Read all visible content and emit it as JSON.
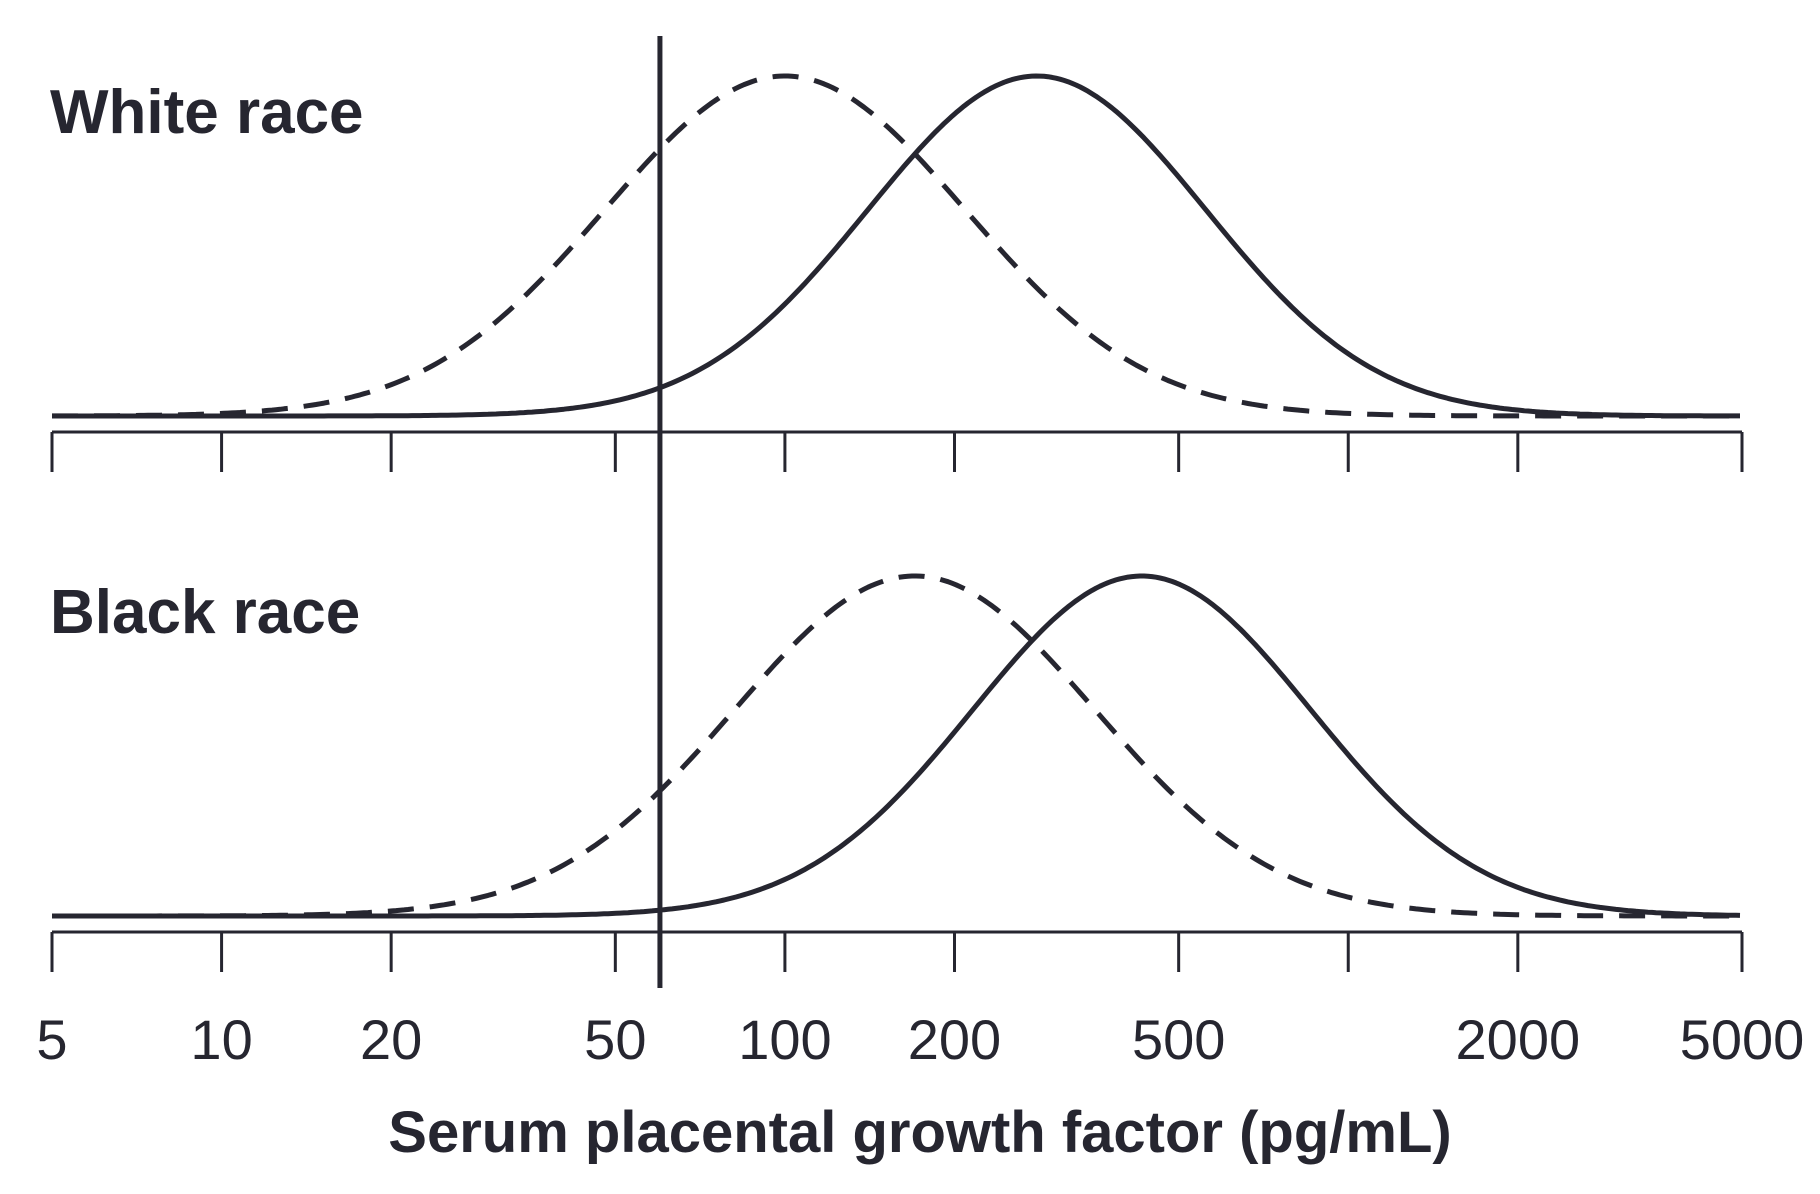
{
  "chart_data": {
    "type": "line",
    "xlabel": "Serum placental growth factor (pg/mL)",
    "x_scale": "log",
    "xlim": [
      5,
      5000
    ],
    "tick_values": [
      5,
      10,
      20,
      50,
      100,
      200,
      500,
      1000,
      2000,
      5000
    ],
    "tick_labels": [
      "5",
      "10",
      "20",
      "50",
      "100",
      "200",
      "500",
      "",
      "2000",
      "5000"
    ],
    "cutoff_x": 60,
    "line_color": "#262630",
    "panels": [
      {
        "label": "White race",
        "series": [
          {
            "style": "dashed",
            "peak_x": 100,
            "sigma_log10": 0.32
          },
          {
            "style": "solid",
            "peak_x": 280,
            "sigma_log10": 0.3
          }
        ]
      },
      {
        "label": "Black race",
        "series": [
          {
            "style": "dashed",
            "peak_x": 170,
            "sigma_log10": 0.32
          },
          {
            "style": "solid",
            "peak_x": 430,
            "sigma_log10": 0.3
          }
        ]
      }
    ]
  }
}
